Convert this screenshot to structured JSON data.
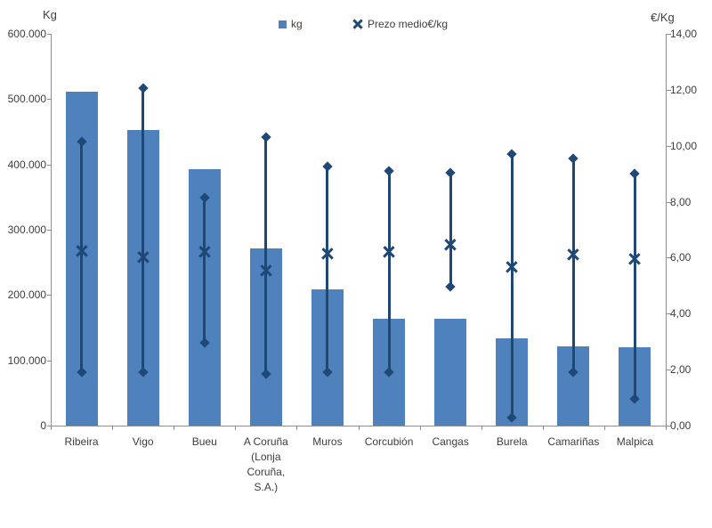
{
  "chart_data": {
    "type": "bar",
    "title": "",
    "left_axis": {
      "title": "Kg",
      "min": 0,
      "max": 600000,
      "ticks": [
        "600.000",
        "500.000",
        "400.000",
        "300.000",
        "200.000",
        "100.000",
        "0"
      ]
    },
    "right_axis": {
      "title": "€/Kg",
      "min": 0,
      "max": 14,
      "ticks": [
        "14,00",
        "12,00",
        "10,00",
        "8,00",
        "6,00",
        "4,00",
        "2,00",
        "0,00"
      ]
    },
    "legend": [
      {
        "label": "kg",
        "marker": "square-icon"
      },
      {
        "label": "Prezo medio€/kg",
        "marker": "x-icon"
      }
    ],
    "categories": [
      "Ribeira",
      "Vigo",
      "Bueu",
      "A Coruña (Lonja Coruña, S.A.)",
      "Muros",
      "Corcubión",
      "Cangas",
      "Burela",
      "Camariñas",
      "Malpica"
    ],
    "category_label_lines": [
      [
        "Ribeira"
      ],
      [
        "Vigo"
      ],
      [
        "Bueu"
      ],
      [
        "A Coruña",
        "(Lonja",
        "Coruña,",
        "S.A.)"
      ],
      [
        "Muros"
      ],
      [
        "Corcubión"
      ],
      [
        "Cangas"
      ],
      [
        "Burela"
      ],
      [
        "Camariñas"
      ],
      [
        "Malpica"
      ]
    ],
    "series": [
      {
        "name": "kg",
        "axis": "left",
        "kind": "bar",
        "values": [
          511000,
          453000,
          393000,
          271000,
          208000,
          163000,
          163000,
          133000,
          122000,
          120000
        ]
      },
      {
        "name": "Prezo medio€/kg",
        "axis": "right",
        "kind": "x-marker-with-hilow-range",
        "values": [
          6.25,
          6.0,
          6.2,
          5.55,
          6.15,
          6.2,
          6.45,
          5.65,
          6.1,
          5.95
        ],
        "range_high": [
          10.15,
          12.05,
          8.15,
          10.3,
          9.25,
          9.1,
          9.05,
          9.7,
          9.55,
          9.0
        ],
        "range_low": [
          1.9,
          1.9,
          2.95,
          1.85,
          1.9,
          1.9,
          4.95,
          0.3,
          1.9,
          0.95
        ]
      }
    ],
    "grid": "off",
    "legend_position": "top",
    "colors": {
      "bar": "#4f81bd",
      "price": "#1f4876",
      "axis_line": "#8e8e8e",
      "text": "#3d3d3d",
      "background": "#ffffff"
    }
  }
}
